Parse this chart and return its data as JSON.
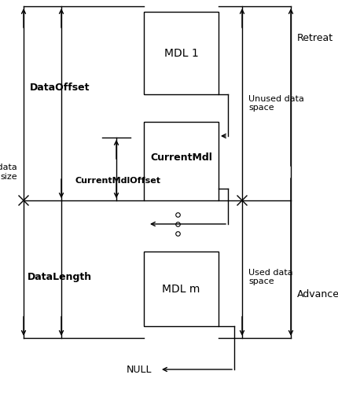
{
  "bg_color": "#ffffff",
  "mdl1_label": "MDL 1",
  "currentmdl_label": "CurrentMdl",
  "mdlm_label": "MDL m",
  "null_label": "NULL",
  "dataoffset_label": "DataOffset",
  "currentmdloffset_label": "CurrentMdlOffset",
  "datalength_label": "DataLength",
  "totaldata_label": "Total data\nsize",
  "unused_label": "Unused data\nspace",
  "used_label": "Used data\nspace",
  "retreat_label": "Retreat",
  "advance_label": "Advance",
  "lw": 1.0
}
